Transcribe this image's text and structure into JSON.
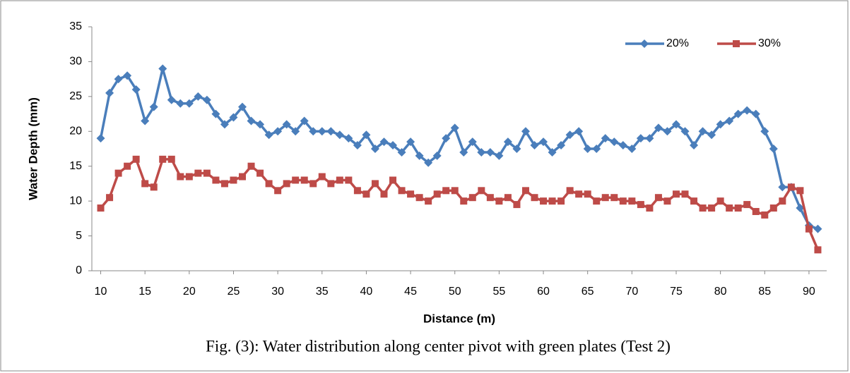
{
  "chart_data": {
    "type": "line",
    "caption": "Fig. (3): Water distribution along center pivot with green plates (Test 2)",
    "x_label": "Distance (m)",
    "y_label": "Water Depth (mm)",
    "x": [
      10,
      11,
      12,
      13,
      14,
      15,
      16,
      17,
      18,
      19,
      20,
      21,
      22,
      23,
      24,
      25,
      26,
      27,
      28,
      29,
      30,
      31,
      32,
      33,
      34,
      35,
      36,
      37,
      38,
      39,
      40,
      41,
      42,
      43,
      44,
      45,
      46,
      47,
      48,
      49,
      50,
      51,
      52,
      53,
      54,
      55,
      56,
      57,
      58,
      59,
      60,
      61,
      62,
      63,
      64,
      65,
      66,
      67,
      68,
      69,
      70,
      71,
      72,
      73,
      74,
      75,
      76,
      77,
      78,
      79,
      80,
      81,
      82,
      83,
      84,
      85,
      86,
      87,
      88,
      89,
      90,
      91
    ],
    "series": [
      {
        "name": "20%",
        "color": "#4a7ebb",
        "marker": "diamond",
        "values": [
          19,
          25.5,
          27.5,
          28,
          26,
          21.5,
          23.5,
          29,
          24.5,
          24,
          24,
          25,
          24.5,
          22.5,
          21,
          22,
          23.5,
          21.5,
          21,
          19.5,
          20,
          21,
          20,
          21.5,
          20,
          20,
          20,
          19.5,
          19,
          18,
          19.5,
          17.5,
          18.5,
          18,
          17,
          18.5,
          16.5,
          15.5,
          16.5,
          19,
          20.5,
          17,
          18.5,
          17,
          17,
          16.5,
          18.5,
          17.5,
          20,
          18,
          18.5,
          17,
          18,
          19.5,
          20,
          17.5,
          17.5,
          19,
          18.5,
          18,
          17.5,
          19,
          19,
          20.5,
          20,
          21,
          20,
          18,
          20,
          19.5,
          21,
          21.5,
          22.5,
          23,
          22.5,
          20,
          17.5,
          12,
          12,
          9,
          6.5,
          6
        ]
      },
      {
        "name": "30%",
        "color": "#be4b48",
        "marker": "square",
        "values": [
          9,
          10.5,
          14,
          15,
          16,
          12.5,
          12,
          16,
          16,
          13.5,
          13.5,
          14,
          14,
          13,
          12.5,
          13,
          13.5,
          15,
          14,
          12.5,
          11.5,
          12.5,
          13,
          13,
          12.5,
          13.5,
          12.5,
          13,
          13,
          11.5,
          11,
          12.5,
          11,
          13,
          11.5,
          11,
          10.5,
          10,
          11,
          11.5,
          11.5,
          10,
          10.5,
          11.5,
          10.5,
          10,
          10.5,
          9.5,
          11.5,
          10.5,
          10,
          10,
          10,
          11.5,
          11,
          11,
          10,
          10.5,
          10.5,
          10,
          10,
          9.5,
          9,
          10.5,
          10,
          11,
          11,
          10,
          9,
          9,
          10,
          9,
          9,
          9.5,
          8.5,
          8,
          9,
          10,
          12,
          11.5,
          6,
          3
        ]
      }
    ],
    "xlim": [
      9,
      92
    ],
    "xticks": [
      10,
      15,
      20,
      25,
      30,
      35,
      40,
      45,
      50,
      55,
      60,
      65,
      70,
      75,
      80,
      85,
      90
    ],
    "ylim": [
      0,
      35
    ],
    "yticks": [
      0,
      5,
      10,
      15,
      20,
      25,
      30,
      35
    ],
    "grid": false,
    "legend": "top-right"
  }
}
